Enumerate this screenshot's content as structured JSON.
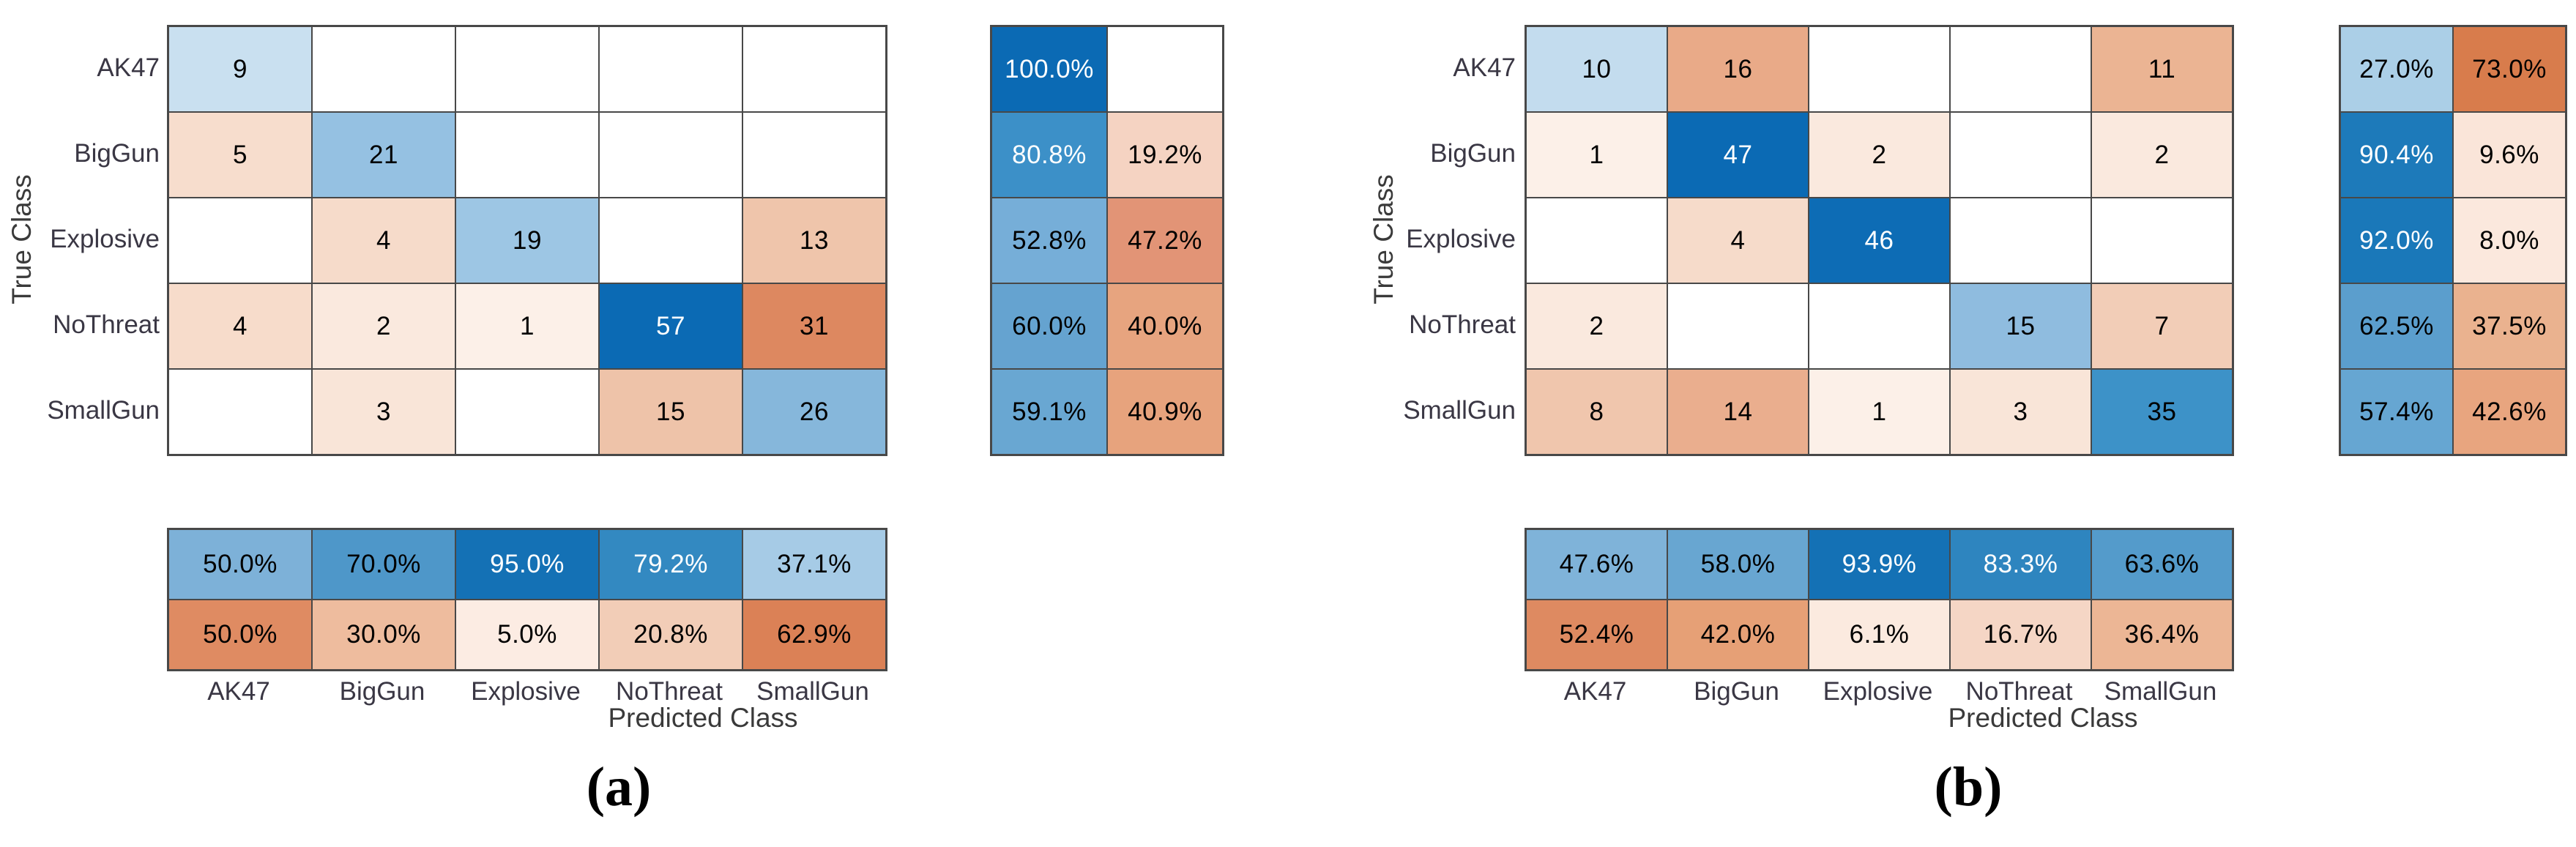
{
  "figures": [
    {
      "id": "a",
      "caption": "(a)",
      "ylabel": "True Class",
      "xlabel": "Predicted Class",
      "classes": [
        "AK47",
        "BigGun",
        "Explosive",
        "NoThreat",
        "SmallGun"
      ],
      "cells": [
        [
          {
            "t": "9",
            "bg": "#c9e0f0",
            "fg": "#000000"
          },
          {
            "t": "",
            "bg": "#ffffff",
            "fg": "#000000"
          },
          {
            "t": "",
            "bg": "#ffffff",
            "fg": "#000000"
          },
          {
            "t": "",
            "bg": "#ffffff",
            "fg": "#000000"
          },
          {
            "t": "",
            "bg": "#ffffff",
            "fg": "#000000"
          }
        ],
        [
          {
            "t": "5",
            "bg": "#f7ddcd",
            "fg": "#000000"
          },
          {
            "t": "21",
            "bg": "#95c1e2",
            "fg": "#000000"
          },
          {
            "t": "",
            "bg": "#ffffff",
            "fg": "#000000"
          },
          {
            "t": "",
            "bg": "#ffffff",
            "fg": "#000000"
          },
          {
            "t": "",
            "bg": "#ffffff",
            "fg": "#000000"
          }
        ],
        [
          {
            "t": "",
            "bg": "#ffffff",
            "fg": "#000000"
          },
          {
            "t": "4",
            "bg": "#f6dbca",
            "fg": "#000000"
          },
          {
            "t": "19",
            "bg": "#9dc6e4",
            "fg": "#000000"
          },
          {
            "t": "",
            "bg": "#ffffff",
            "fg": "#000000"
          },
          {
            "t": "13",
            "bg": "#efc5ab",
            "fg": "#000000"
          }
        ],
        [
          {
            "t": "4",
            "bg": "#f7dccb",
            "fg": "#000000"
          },
          {
            "t": "2",
            "bg": "#fae9de",
            "fg": "#000000"
          },
          {
            "t": "1",
            "bg": "#fcf0e8",
            "fg": "#000000"
          },
          {
            "t": "57",
            "bg": "#0b6ab4",
            "fg": "#ffffff"
          },
          {
            "t": "31",
            "bg": "#dd8860",
            "fg": "#000000"
          }
        ],
        [
          {
            "t": "",
            "bg": "#ffffff",
            "fg": "#000000"
          },
          {
            "t": "3",
            "bg": "#f9e5d8",
            "fg": "#000000"
          },
          {
            "t": "",
            "bg": "#ffffff",
            "fg": "#000000"
          },
          {
            "t": "15",
            "bg": "#eec3a9",
            "fg": "#000000"
          },
          {
            "t": "26",
            "bg": "#86b7db",
            "fg": "#000000"
          }
        ]
      ],
      "row_summary": [
        [
          {
            "t": "100.0%",
            "bg": "#0b6ab4",
            "fg": "#ffffff"
          },
          {
            "t": "",
            "bg": "#ffffff",
            "fg": "#000000"
          }
        ],
        [
          {
            "t": "80.8%",
            "bg": "#3c90c8",
            "fg": "#ffffff"
          },
          {
            "t": "19.2%",
            "bg": "#f5d3c2",
            "fg": "#000000"
          }
        ],
        [
          {
            "t": "52.8%",
            "bg": "#76aed8",
            "fg": "#000000"
          },
          {
            "t": "47.2%",
            "bg": "#e29476",
            "fg": "#000000"
          }
        ],
        [
          {
            "t": "60.0%",
            "bg": "#65a3d0",
            "fg": "#000000"
          },
          {
            "t": "40.0%",
            "bg": "#e7a47f",
            "fg": "#000000"
          }
        ],
        [
          {
            "t": "59.1%",
            "bg": "#69a7d2",
            "fg": "#000000"
          },
          {
            "t": "40.9%",
            "bg": "#e7a37d",
            "fg": "#000000"
          }
        ]
      ],
      "col_summary": [
        [
          {
            "t": "50.0%",
            "bg": "#7db1d8",
            "fg": "#000000"
          },
          {
            "t": "70.0%",
            "bg": "#4e97c9",
            "fg": "#000000"
          },
          {
            "t": "95.0%",
            "bg": "#1471b5",
            "fg": "#ffffff"
          },
          {
            "t": "79.2%",
            "bg": "#3389c1",
            "fg": "#ffffff"
          },
          {
            "t": "37.1%",
            "bg": "#a6cbe6",
            "fg": "#000000"
          }
        ],
        [
          {
            "t": "50.0%",
            "bg": "#df8b62",
            "fg": "#000000"
          },
          {
            "t": "30.0%",
            "bg": "#eebc9e",
            "fg": "#000000"
          },
          {
            "t": "5.0%",
            "bg": "#fcece3",
            "fg": "#000000"
          },
          {
            "t": "20.8%",
            "bg": "#f2cdb7",
            "fg": "#000000"
          },
          {
            "t": "62.9%",
            "bg": "#db8156",
            "fg": "#000000"
          }
        ]
      ]
    },
    {
      "id": "b",
      "caption": "(b)",
      "ylabel": "True Class",
      "xlabel": "Predicted Class",
      "classes": [
        "AK47",
        "BigGun",
        "Explosive",
        "NoThreat",
        "SmallGun"
      ],
      "cells": [
        [
          {
            "t": "10",
            "bg": "#c3dcee",
            "fg": "#000000"
          },
          {
            "t": "16",
            "bg": "#e9aa88",
            "fg": "#000000"
          },
          {
            "t": "",
            "bg": "#ffffff",
            "fg": "#000000"
          },
          {
            "t": "",
            "bg": "#ffffff",
            "fg": "#000000"
          },
          {
            "t": "11",
            "bg": "#ebb493",
            "fg": "#000000"
          }
        ],
        [
          {
            "t": "1",
            "bg": "#fcf0e8",
            "fg": "#000000"
          },
          {
            "t": "47",
            "bg": "#0b6ab4",
            "fg": "#ffffff"
          },
          {
            "t": "2",
            "bg": "#fae9de",
            "fg": "#000000"
          },
          {
            "t": "",
            "bg": "#ffffff",
            "fg": "#000000"
          },
          {
            "t": "2",
            "bg": "#fae9de",
            "fg": "#000000"
          }
        ],
        [
          {
            "t": "",
            "bg": "#ffffff",
            "fg": "#000000"
          },
          {
            "t": "4",
            "bg": "#f6dbca",
            "fg": "#000000"
          },
          {
            "t": "46",
            "bg": "#0d6cb5",
            "fg": "#ffffff"
          },
          {
            "t": "",
            "bg": "#ffffff",
            "fg": "#000000"
          },
          {
            "t": "",
            "bg": "#ffffff",
            "fg": "#000000"
          }
        ],
        [
          {
            "t": "2",
            "bg": "#fae9de",
            "fg": "#000000"
          },
          {
            "t": "",
            "bg": "#ffffff",
            "fg": "#000000"
          },
          {
            "t": "",
            "bg": "#ffffff",
            "fg": "#000000"
          },
          {
            "t": "15",
            "bg": "#8fbcdf",
            "fg": "#000000"
          },
          {
            "t": "7",
            "bg": "#f2cdb7",
            "fg": "#000000"
          }
        ],
        [
          {
            "t": "8",
            "bg": "#f0c6ad",
            "fg": "#000000"
          },
          {
            "t": "14",
            "bg": "#eaae8e",
            "fg": "#000000"
          },
          {
            "t": "1",
            "bg": "#fcf0e8",
            "fg": "#000000"
          },
          {
            "t": "3",
            "bg": "#f9e5d8",
            "fg": "#000000"
          },
          {
            "t": "35",
            "bg": "#3d92c8",
            "fg": "#000000"
          }
        ]
      ],
      "row_summary": [
        [
          {
            "t": "27.0%",
            "bg": "#abcfe7",
            "fg": "#000000"
          },
          {
            "t": "73.0%",
            "bg": "#d87c4c",
            "fg": "#000000"
          }
        ],
        [
          {
            "t": "90.4%",
            "bg": "#1d7aba",
            "fg": "#ffffff"
          },
          {
            "t": "9.6%",
            "bg": "#fae5d9",
            "fg": "#000000"
          }
        ],
        [
          {
            "t": "92.0%",
            "bg": "#1a78b9",
            "fg": "#ffffff"
          },
          {
            "t": "8.0%",
            "bg": "#fbe8dd",
            "fg": "#000000"
          }
        ],
        [
          {
            "t": "62.5%",
            "bg": "#5b9ecd",
            "fg": "#000000"
          },
          {
            "t": "37.5%",
            "bg": "#eab28f",
            "fg": "#000000"
          }
        ],
        [
          {
            "t": "57.4%",
            "bg": "#66a6d2",
            "fg": "#000000"
          },
          {
            "t": "42.6%",
            "bg": "#e8a57f",
            "fg": "#000000"
          }
        ]
      ],
      "col_summary": [
        [
          {
            "t": "47.6%",
            "bg": "#7fb3d9",
            "fg": "#000000"
          },
          {
            "t": "58.0%",
            "bg": "#68a6d1",
            "fg": "#000000"
          },
          {
            "t": "93.9%",
            "bg": "#1471b5",
            "fg": "#ffffff"
          },
          {
            "t": "83.3%",
            "bg": "#2e85bf",
            "fg": "#ffffff"
          },
          {
            "t": "63.6%",
            "bg": "#549bcb",
            "fg": "#000000"
          }
        ],
        [
          {
            "t": "52.4%",
            "bg": "#de8a61",
            "fg": "#000000"
          },
          {
            "t": "42.0%",
            "bg": "#e6a076",
            "fg": "#000000"
          },
          {
            "t": "6.1%",
            "bg": "#fbeadf",
            "fg": "#000000"
          },
          {
            "t": "16.7%",
            "bg": "#f5d6c5",
            "fg": "#000000"
          },
          {
            "t": "36.4%",
            "bg": "#ecb695",
            "fg": "#000000"
          }
        ]
      ]
    }
  ],
  "chart_data": [
    {
      "type": "heatmap",
      "title": "(a)",
      "xlabel": "Predicted Class",
      "ylabel": "True Class",
      "classes": [
        "AK47",
        "BigGun",
        "Explosive",
        "NoThreat",
        "SmallGun"
      ],
      "matrix": [
        [
          9,
          null,
          null,
          null,
          null
        ],
        [
          5,
          21,
          null,
          null,
          null
        ],
        [
          null,
          4,
          19,
          null,
          13
        ],
        [
          4,
          2,
          1,
          57,
          31
        ],
        [
          null,
          3,
          null,
          15,
          26
        ]
      ],
      "row_summary_pct": [
        [
          100.0,
          null
        ],
        [
          80.8,
          19.2
        ],
        [
          52.8,
          47.2
        ],
        [
          60.0,
          40.0
        ],
        [
          59.1,
          40.9
        ]
      ],
      "col_summary_pct": [
        [
          50.0,
          70.0,
          95.0,
          79.2,
          37.1
        ],
        [
          50.0,
          30.0,
          5.0,
          20.8,
          62.9
        ]
      ],
      "colormap": {
        "diagonal": "blue",
        "off_diagonal": "orange",
        "max_blue": "#0b6ab4",
        "max_orange": "#d87c4c"
      },
      "legend_position": "none",
      "grid": true
    },
    {
      "type": "heatmap",
      "title": "(b)",
      "xlabel": "Predicted Class",
      "ylabel": "True Class",
      "classes": [
        "AK47",
        "BigGun",
        "Explosive",
        "NoThreat",
        "SmallGun"
      ],
      "matrix": [
        [
          10,
          16,
          null,
          null,
          11
        ],
        [
          1,
          47,
          2,
          null,
          2
        ],
        [
          null,
          4,
          46,
          null,
          null
        ],
        [
          2,
          null,
          null,
          15,
          7
        ],
        [
          8,
          14,
          1,
          3,
          35
        ]
      ],
      "row_summary_pct": [
        [
          27.0,
          73.0
        ],
        [
          90.4,
          9.6
        ],
        [
          92.0,
          8.0
        ],
        [
          62.5,
          37.5
        ],
        [
          57.4,
          42.6
        ]
      ],
      "col_summary_pct": [
        [
          47.6,
          58.0,
          93.9,
          83.3,
          63.6
        ],
        [
          52.4,
          42.0,
          6.1,
          16.7,
          36.4
        ]
      ],
      "colormap": {
        "diagonal": "blue",
        "off_diagonal": "orange",
        "max_blue": "#0b6ab4",
        "max_orange": "#d87c4c"
      },
      "legend_position": "none",
      "grid": true
    }
  ]
}
